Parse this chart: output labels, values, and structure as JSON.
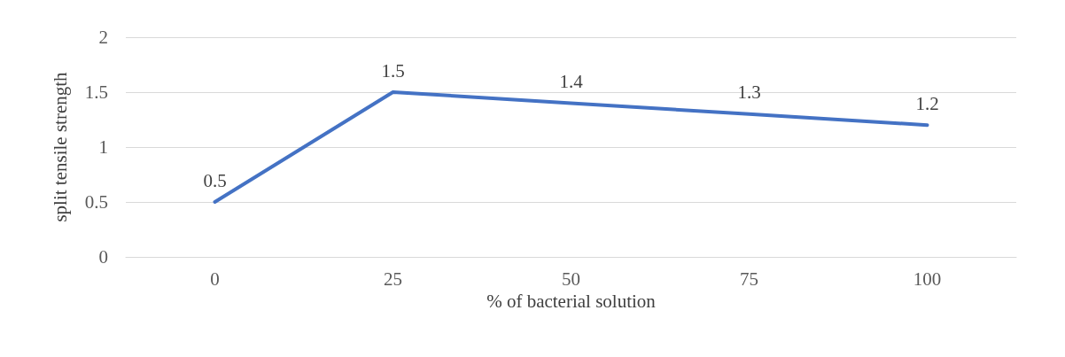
{
  "chart_data": {
    "type": "line",
    "xlabel": "% of bacterial solution",
    "ylabel": "split tensile strength",
    "categories": [
      "0",
      "25",
      "50",
      "75",
      "100"
    ],
    "series": [
      {
        "color": "#4472c4",
        "values": [
          0.5,
          1.5,
          1.4,
          1.3,
          1.2
        ]
      }
    ],
    "ylim": [
      0,
      2
    ],
    "yticks": [
      0,
      0.5,
      1,
      1.5,
      2
    ],
    "grid": "y",
    "data_labels": true,
    "marker": "none",
    "line_style": "solid"
  }
}
